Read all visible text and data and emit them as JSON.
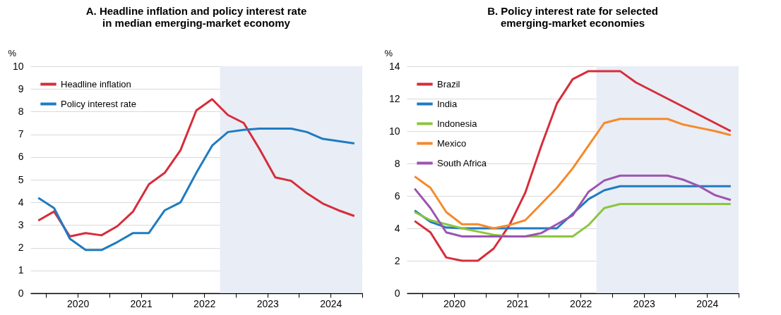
{
  "chart_data": [
    {
      "type": "line",
      "title": "A. Headline inflation and policy interest rate\nin median emerging-market economy",
      "ylabel": "%",
      "x": [
        2019.875,
        2020.125,
        2020.375,
        2020.625,
        2020.875,
        2021.125,
        2021.375,
        2021.625,
        2021.875,
        2022.125,
        2022.375,
        2022.625,
        2022.875,
        2023.125,
        2023.375,
        2023.625,
        2023.875,
        2024.125,
        2024.375,
        2024.625,
        2024.875
      ],
      "series": [
        {
          "name": "Headline inflation",
          "color": "#d62d3b",
          "values": [
            3.2,
            3.6,
            2.5,
            2.65,
            2.55,
            2.95,
            3.6,
            4.8,
            5.3,
            6.3,
            8.05,
            8.55,
            7.85,
            7.5,
            6.35,
            5.1,
            4.95,
            4.4,
            3.95,
            3.65,
            3.4
          ]
        },
        {
          "name": "Policy interest rate",
          "color": "#1f7bc1",
          "values": [
            4.2,
            3.75,
            2.4,
            1.9,
            1.9,
            2.25,
            2.65,
            2.65,
            3.65,
            4.0,
            5.3,
            6.5,
            7.1,
            7.2,
            7.25,
            7.25,
            7.25,
            7.1,
            6.8,
            6.7,
            6.6
          ]
        }
      ],
      "xlim": [
        2019.75,
        2025
      ],
      "xticks": [
        {
          "value": 2020,
          "label": null
        },
        {
          "value": 2020.5,
          "label": "2020"
        },
        {
          "value": 2021,
          "label": null
        },
        {
          "value": 2021.5,
          "label": "2021"
        },
        {
          "value": 2022,
          "label": null
        },
        {
          "value": 2022.5,
          "label": "2022"
        },
        {
          "value": 2023,
          "label": null
        },
        {
          "value": 2023.5,
          "label": "2023"
        },
        {
          "value": 2024,
          "label": null
        },
        {
          "value": 2024.5,
          "label": "2024"
        },
        {
          "value": 2025,
          "label": null
        }
      ],
      "ylim": [
        0,
        10
      ],
      "yticks": [
        0,
        1,
        2,
        3,
        4,
        5,
        6,
        7,
        8,
        9,
        10
      ],
      "bands": [
        {
          "axis": "x",
          "from": 2022.75,
          "to": 2025,
          "color": "#e9edf5"
        }
      ],
      "grid": "y",
      "legend": "top left",
      "line_style": "solid"
    },
    {
      "type": "line",
      "title": "B. Policy interest rate for selected\nemerging-market economies",
      "ylabel": "%",
      "x": [
        2019.875,
        2020.125,
        2020.375,
        2020.625,
        2020.875,
        2021.125,
        2021.375,
        2021.625,
        2021.875,
        2022.125,
        2022.375,
        2022.625,
        2022.875,
        2023.125,
        2023.375,
        2023.625,
        2023.875,
        2024.125,
        2024.375,
        2024.625,
        2024.875
      ],
      "series": [
        {
          "name": "Brazil",
          "color": "#d62d3b",
          "values": [
            4.45,
            3.75,
            2.2,
            2.0,
            2.0,
            2.75,
            4.2,
            6.2,
            9.05,
            11.7,
            13.2,
            13.7,
            13.7,
            13.7,
            13.0,
            12.5,
            12.0,
            11.5,
            11.0,
            10.5,
            10.0
          ]
        },
        {
          "name": "India",
          "color": "#1f7bc1",
          "values": [
            5.1,
            4.4,
            4.05,
            4.0,
            4.0,
            4.0,
            4.0,
            4.0,
            4.0,
            4.0,
            4.9,
            5.8,
            6.35,
            6.6,
            6.6,
            6.6,
            6.6,
            6.6,
            6.6,
            6.6,
            6.6
          ]
        },
        {
          "name": "Indonesia",
          "color": "#8cc63f",
          "values": [
            5.0,
            4.5,
            4.25,
            4.0,
            3.8,
            3.6,
            3.5,
            3.5,
            3.5,
            3.5,
            3.5,
            4.2,
            5.25,
            5.5,
            5.5,
            5.5,
            5.5,
            5.5,
            5.5,
            5.5,
            5.5
          ]
        },
        {
          "name": "Mexico",
          "color": "#f58a2a",
          "values": [
            7.2,
            6.5,
            5.0,
            4.25,
            4.25,
            4.0,
            4.2,
            4.5,
            5.5,
            6.5,
            7.7,
            9.1,
            10.5,
            10.75,
            10.75,
            10.75,
            10.75,
            10.4,
            10.2,
            10.0,
            9.75
          ]
        },
        {
          "name": "South Africa",
          "color": "#9b55b0",
          "values": [
            6.45,
            5.25,
            3.75,
            3.5,
            3.5,
            3.5,
            3.5,
            3.5,
            3.7,
            4.25,
            4.8,
            6.25,
            6.95,
            7.25,
            7.25,
            7.25,
            7.25,
            7.0,
            6.6,
            6.05,
            5.75
          ]
        }
      ],
      "xlim": [
        2019.75,
        2025
      ],
      "xticks": [
        {
          "value": 2020,
          "label": null
        },
        {
          "value": 2020.5,
          "label": "2020"
        },
        {
          "value": 2021,
          "label": null
        },
        {
          "value": 2021.5,
          "label": "2021"
        },
        {
          "value": 2022,
          "label": null
        },
        {
          "value": 2022.5,
          "label": "2022"
        },
        {
          "value": 2023,
          "label": null
        },
        {
          "value": 2023.5,
          "label": "2023"
        },
        {
          "value": 2024,
          "label": null
        },
        {
          "value": 2024.5,
          "label": "2024"
        },
        {
          "value": 2025,
          "label": null
        }
      ],
      "ylim": [
        0,
        14
      ],
      "yticks": [
        0,
        2,
        4,
        6,
        8,
        10,
        12,
        14
      ],
      "bands": [
        {
          "axis": "x",
          "from": 2022.75,
          "to": 2025,
          "color": "#e9edf5"
        }
      ],
      "grid": "y",
      "legend": "top left",
      "line_style": "solid"
    }
  ]
}
